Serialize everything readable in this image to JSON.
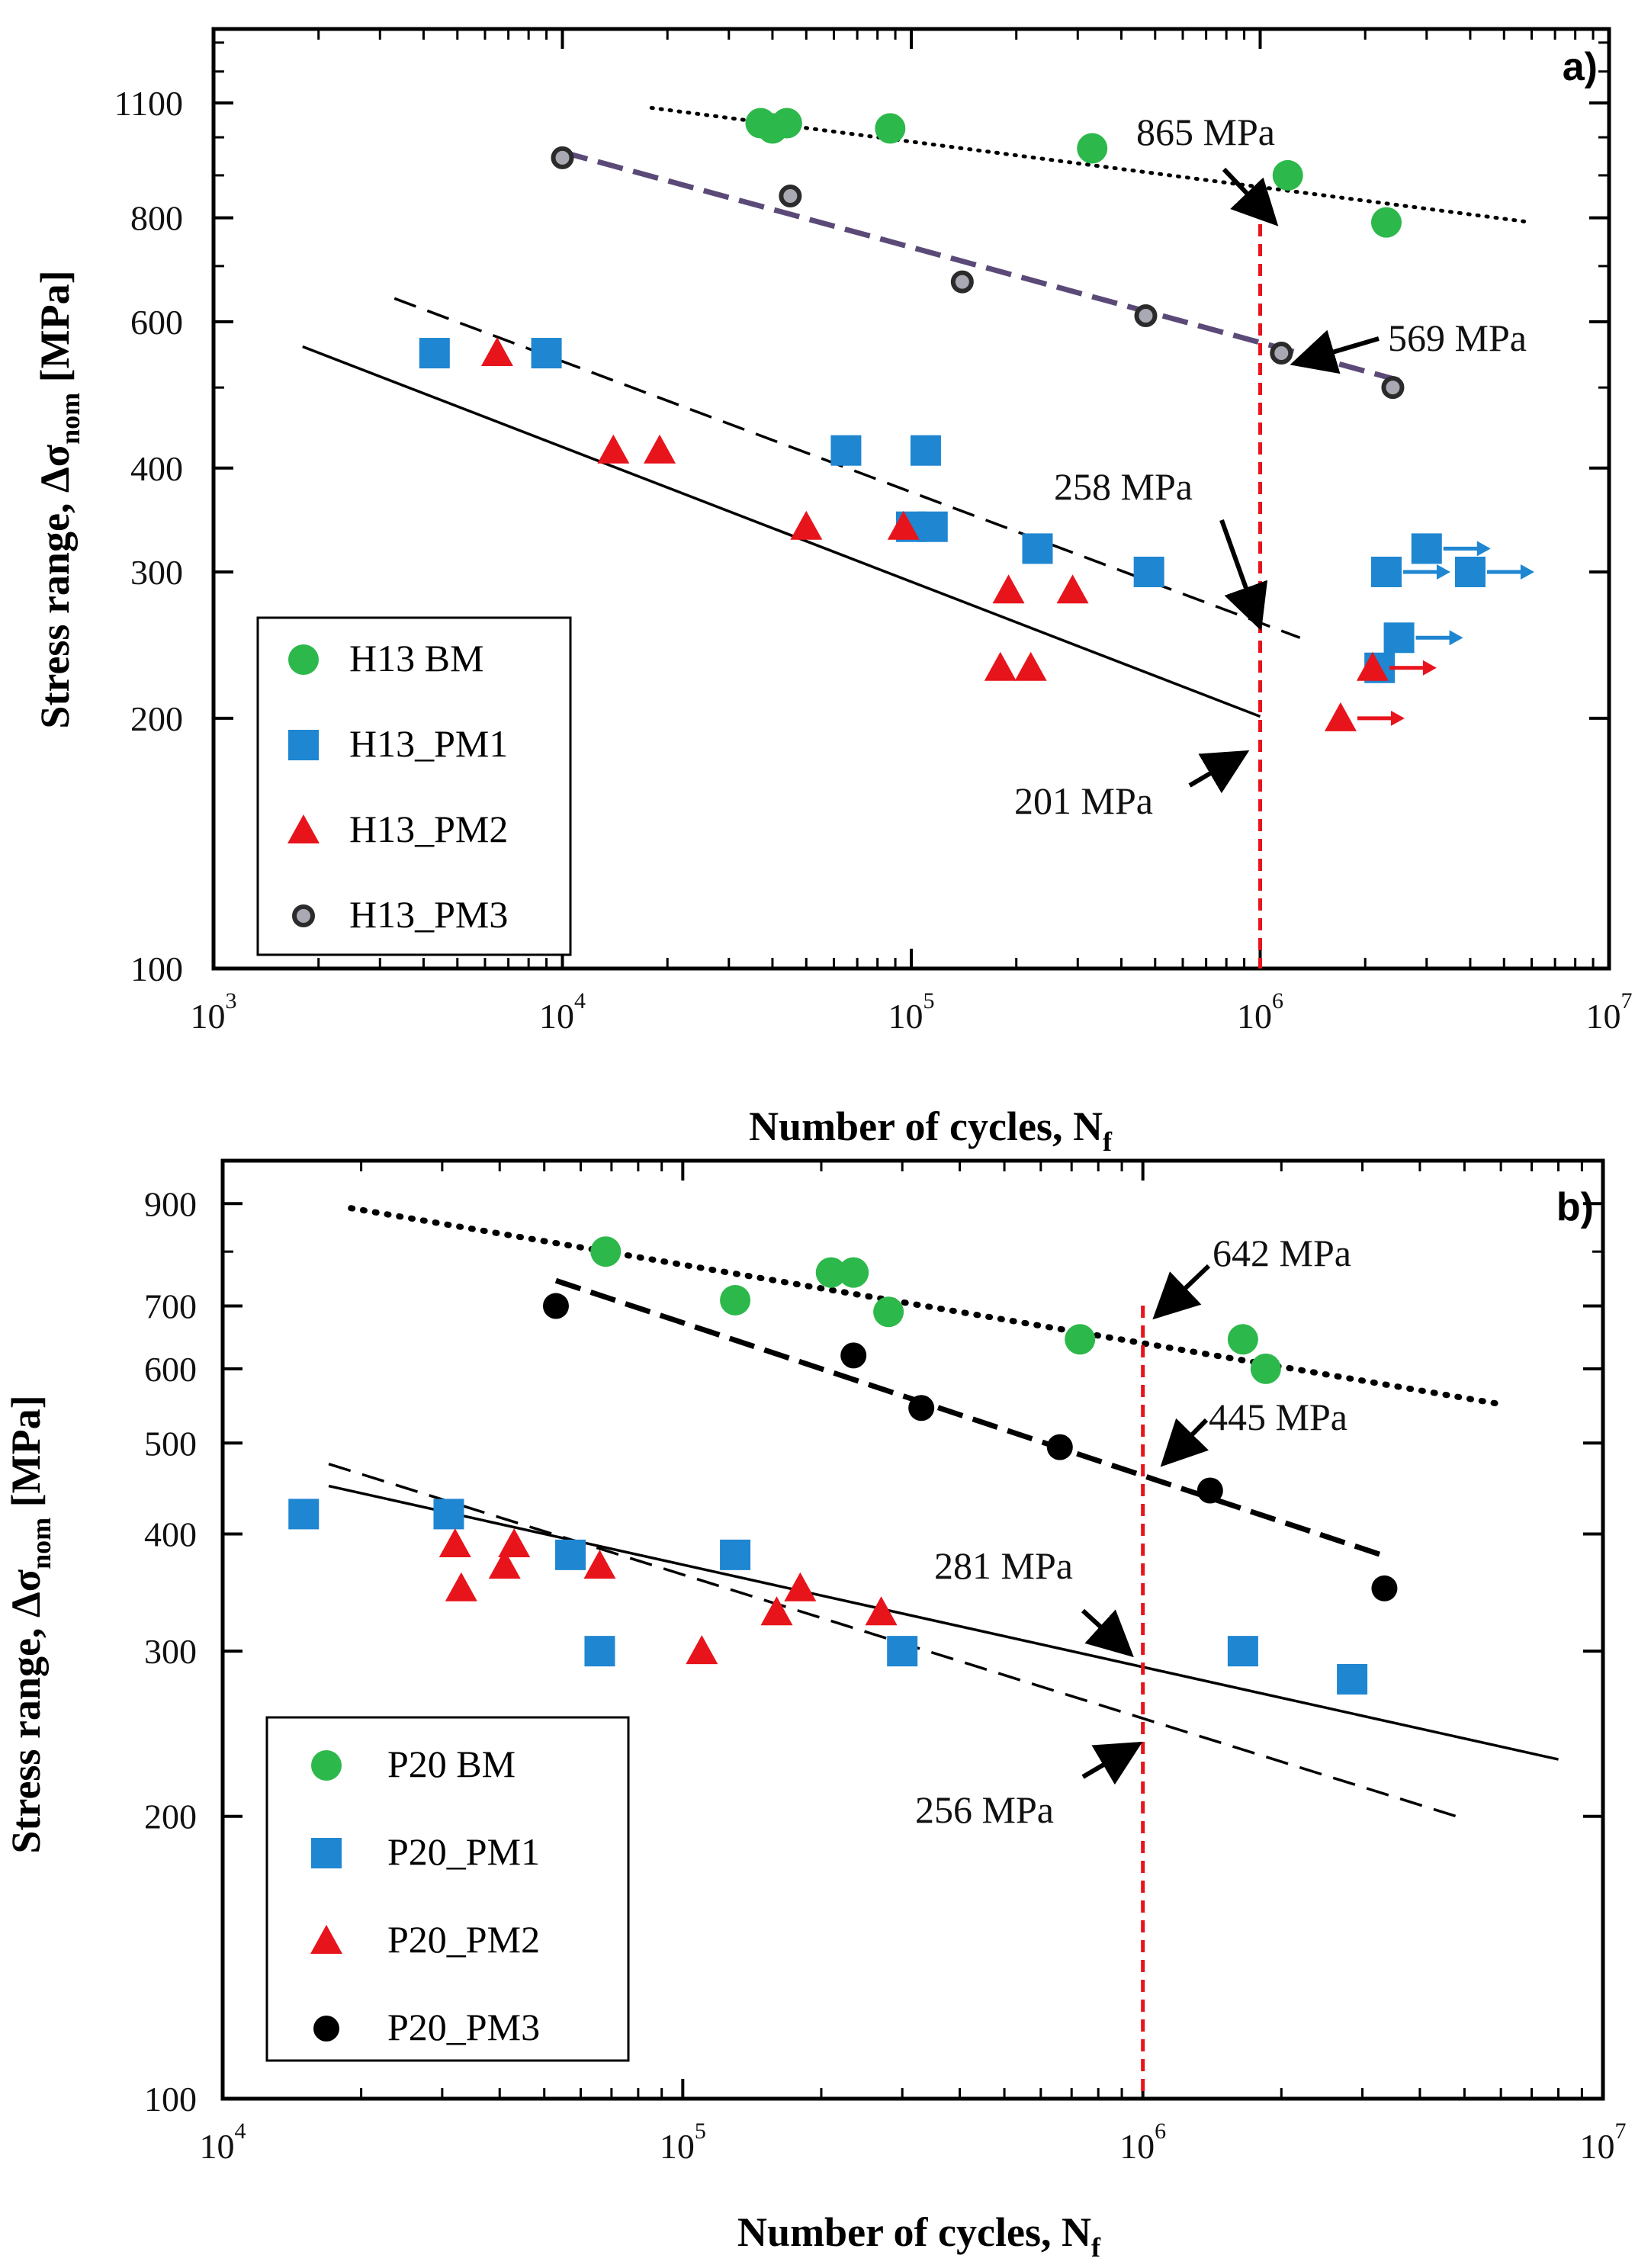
{
  "colors": {
    "green": "#2db84b",
    "blue": "#1f86d1",
    "red": "#e8141b",
    "purple": "#5b4a78",
    "black": "#000000",
    "limit_line": "#e8141b"
  },
  "chart_data": [
    {
      "type": "scatter",
      "panel_label": "a)",
      "xscale": "log",
      "yscale": "log",
      "xlim": [
        1000,
        10000000
      ],
      "ylim": [
        100,
        1350
      ],
      "xlabel": "Number of cycles, N",
      "xlabel_sub": "f",
      "ylabel_main": "Stress range, Δσ",
      "ylabel_sub": "nom",
      "ylabel_unit": " [MPa]",
      "x_ticks": [
        {
          "value": 1000,
          "base": "10",
          "exp": "3"
        },
        {
          "value": 10000,
          "base": "10",
          "exp": "4"
        },
        {
          "value": 100000,
          "base": "10",
          "exp": "5"
        },
        {
          "value": 1000000,
          "base": "10",
          "exp": "6"
        },
        {
          "value": 10000000,
          "base": "10",
          "exp": "7"
        }
      ],
      "y_ticks": [
        {
          "value": 100,
          "label": "100"
        },
        {
          "value": 200,
          "label": "200"
        },
        {
          "value": 300,
          "label": "300"
        },
        {
          "value": 400,
          "label": "400"
        },
        {
          "value": 600,
          "label": "600"
        },
        {
          "value": 800,
          "label": "800"
        },
        {
          "value": 1100,
          "label": "1100"
        }
      ],
      "y_minor_ticks": [
        500,
        700,
        900,
        1000,
        1200,
        1300
      ],
      "vertical_line_x": 1000000,
      "legend": {
        "position": "bottom-left",
        "entries": [
          {
            "label": "H13 BM",
            "marker": "circle-big",
            "color": "#2db84b"
          },
          {
            "label": "H13_PM1",
            "marker": "square",
            "color": "#1f86d1"
          },
          {
            "label": "H13_PM2",
            "marker": "triangle",
            "color": "#e8141b"
          },
          {
            "label": "H13_PM3",
            "marker": "circle-small",
            "color": "#3a3a3a"
          }
        ]
      },
      "series": [
        {
          "name": "H13 BM",
          "marker": "circle-big",
          "color": "#2db84b",
          "points": [
            [
              37000,
              1040
            ],
            [
              40000,
              1025
            ],
            [
              44000,
              1040
            ],
            [
              87000,
              1025
            ],
            [
              330000,
              970
            ],
            [
              1200000,
              900
            ],
            [
              2300000,
              790
            ]
          ]
        },
        {
          "name": "H13_PM1",
          "marker": "square",
          "color": "#1f86d1",
          "points": [
            [
              4300,
              550
            ],
            [
              9000,
              550
            ],
            [
              65000,
              420
            ],
            [
              110000,
              420
            ],
            [
              100000,
              340
            ],
            [
              115000,
              340
            ],
            [
              230000,
              320
            ],
            [
              480000,
              300
            ],
            [
              2200000,
              230
            ],
            [
              2300000,
              300
            ],
            [
              2500000,
              250
            ],
            [
              3000000,
              320
            ],
            [
              4000000,
              300
            ]
          ]
        },
        {
          "name": "H13_PM2",
          "marker": "triangle",
          "color": "#e8141b",
          "points": [
            [
              6500,
              550
            ],
            [
              14000,
              420
            ],
            [
              19000,
              420
            ],
            [
              50000,
              340
            ],
            [
              95000,
              340
            ],
            [
              190000,
              285
            ],
            [
              290000,
              285
            ],
            [
              180000,
              230
            ],
            [
              220000,
              230
            ],
            [
              1700000,
              200
            ],
            [
              2100000,
              230
            ]
          ]
        },
        {
          "name": "H13_PM3",
          "marker": "circle-small",
          "color": "#3a3a3a",
          "points": [
            [
              10000,
              945
            ],
            [
              45000,
              850
            ],
            [
              140000,
              670
            ],
            [
              470000,
              610
            ],
            [
              1150000,
              550
            ],
            [
              2400000,
              500
            ]
          ]
        }
      ],
      "runouts": [
        {
          "x": 3000000,
          "y": 320,
          "color": "#1f86d1"
        },
        {
          "x": 4000000,
          "y": 300,
          "color": "#1f86d1"
        },
        {
          "x": 2300000,
          "y": 300,
          "color": "#1f86d1"
        },
        {
          "x": 2500000,
          "y": 250,
          "color": "#1f86d1"
        },
        {
          "x": 2100000,
          "y": 230,
          "color": "#e8141b"
        },
        {
          "x": 1700000,
          "y": 200,
          "color": "#e8141b"
        }
      ],
      "fit_lines": [
        {
          "name": "H13 BM fit",
          "style": "dotted",
          "color": "#000000",
          "from": [
            18000,
            1085
          ],
          "to": [
            6000000,
            790
          ]
        },
        {
          "name": "H13_PM3 fit",
          "style": "dashed-thick",
          "color": "#5b4a78",
          "from": [
            10000,
            960
          ],
          "to": [
            2500000,
            510
          ]
        },
        {
          "name": "H13_PM1 fit",
          "style": "dashed",
          "color": "#000000",
          "from": [
            3300,
            640
          ],
          "to": [
            1300000,
            250
          ]
        },
        {
          "name": "H13_PM2 fit",
          "style": "solid",
          "color": "#000000",
          "from": [
            1800,
            560
          ],
          "to": [
            1000000,
            201
          ]
        }
      ],
      "annotations": [
        {
          "text": "865 MPa",
          "value": 865,
          "at": [
            1000000,
            865
          ]
        },
        {
          "text": "569 MPa",
          "value": 569,
          "at": [
            1000000,
            569
          ]
        },
        {
          "text": "258 MPa",
          "value": 258,
          "at": [
            1000000,
            258
          ]
        },
        {
          "text": "201 MPa",
          "value": 201,
          "at": [
            1000000,
            201
          ]
        }
      ]
    },
    {
      "type": "scatter",
      "panel_label": "b)",
      "xscale": "log",
      "yscale": "log",
      "xlim": [
        10000,
        10000000
      ],
      "ylim": [
        100,
        1000
      ],
      "xlabel": "Number of cycles, N",
      "xlabel_sub": "f",
      "ylabel_main": "Stress range, Δσ",
      "ylabel_sub": "nom",
      "ylabel_unit": " [MPa]",
      "x_ticks": [
        {
          "value": 10000,
          "base": "10",
          "exp": "4"
        },
        {
          "value": 100000,
          "base": "10",
          "exp": "5"
        },
        {
          "value": 1000000,
          "base": "10",
          "exp": "6"
        },
        {
          "value": 10000000,
          "base": "10",
          "exp": "7"
        }
      ],
      "y_ticks": [
        {
          "value": 100,
          "label": "100"
        },
        {
          "value": 200,
          "label": "200"
        },
        {
          "value": 300,
          "label": "300"
        },
        {
          "value": 400,
          "label": "400"
        },
        {
          "value": 500,
          "label": "500"
        },
        {
          "value": 600,
          "label": "600"
        },
        {
          "value": 700,
          "label": "700"
        },
        {
          "value": 900,
          "label": "900"
        }
      ],
      "y_minor_ticks": [
        800
      ],
      "vertical_line_x": 1000000,
      "legend": {
        "position": "bottom-left",
        "entries": [
          {
            "label": "P20 BM",
            "marker": "circle-big",
            "color": "#2db84b"
          },
          {
            "label": "P20_PM1",
            "marker": "square",
            "color": "#1f86d1"
          },
          {
            "label": "P20_PM2",
            "marker": "triangle",
            "color": "#e8141b"
          },
          {
            "label": "P20_PM3",
            "marker": "circle-black",
            "color": "#000000"
          }
        ]
      },
      "series": [
        {
          "name": "P20 BM",
          "marker": "circle-big",
          "color": "#2db84b",
          "points": [
            [
              68000,
              800
            ],
            [
              130000,
              710
            ],
            [
              210000,
              760
            ],
            [
              235000,
              760
            ],
            [
              280000,
              690
            ],
            [
              730000,
              645
            ],
            [
              1650000,
              645
            ],
            [
              1850000,
              600
            ]
          ]
        },
        {
          "name": "P20_PM1",
          "marker": "square",
          "color": "#1f86d1",
          "points": [
            [
              15000,
              420
            ],
            [
              31000,
              420
            ],
            [
              57000,
              380
            ],
            [
              130000,
              380
            ],
            [
              66000,
              300
            ],
            [
              300000,
              300
            ],
            [
              1650000,
              300
            ],
            [
              2850000,
              280
            ]
          ]
        },
        {
          "name": "P20_PM2",
          "marker": "triangle",
          "color": "#e8141b",
          "points": [
            [
              32000,
              390
            ],
            [
              33000,
              350
            ],
            [
              41000,
              370
            ],
            [
              43000,
              390
            ],
            [
              66000,
              370
            ],
            [
              110000,
              300
            ],
            [
              160000,
              330
            ],
            [
              180000,
              350
            ],
            [
              270000,
              330
            ]
          ]
        },
        {
          "name": "P20_PM3",
          "marker": "circle-black",
          "color": "#000000",
          "points": [
            [
              53000,
              700
            ],
            [
              235000,
              620
            ],
            [
              330000,
              545
            ],
            [
              660000,
              495
            ],
            [
              1400000,
              445
            ],
            [
              3350000,
              350
            ]
          ]
        }
      ],
      "runouts": [],
      "fit_lines": [
        {
          "name": "P20 BM fit",
          "style": "dotted",
          "color": "#000000",
          "from": [
            19000,
            890
          ],
          "to": [
            6000000,
            550
          ]
        },
        {
          "name": "P20_PM3 fit",
          "style": "dashed-thick",
          "color": "#000000",
          "from": [
            53000,
            745
          ],
          "to": [
            3300000,
            380
          ]
        },
        {
          "name": "P20_PM1 fit",
          "style": "solid",
          "color": "#000000",
          "from": [
            17000,
            450
          ],
          "to": [
            8000000,
            230
          ]
        },
        {
          "name": "P20_PM2 fit",
          "style": "dashed",
          "color": "#000000",
          "from": [
            17000,
            475
          ],
          "to": [
            4800000,
            200
          ]
        }
      ],
      "annotations": [
        {
          "text": "642 MPa",
          "value": 642,
          "at": [
            1000000,
            642
          ]
        },
        {
          "text": "445 MPa",
          "value": 445,
          "at": [
            1000000,
            445
          ]
        },
        {
          "text": "281 MPa",
          "value": 281,
          "at": [
            1000000,
            281
          ]
        },
        {
          "text": "256 MPa",
          "value": 256,
          "at": [
            1000000,
            256
          ]
        }
      ]
    }
  ]
}
